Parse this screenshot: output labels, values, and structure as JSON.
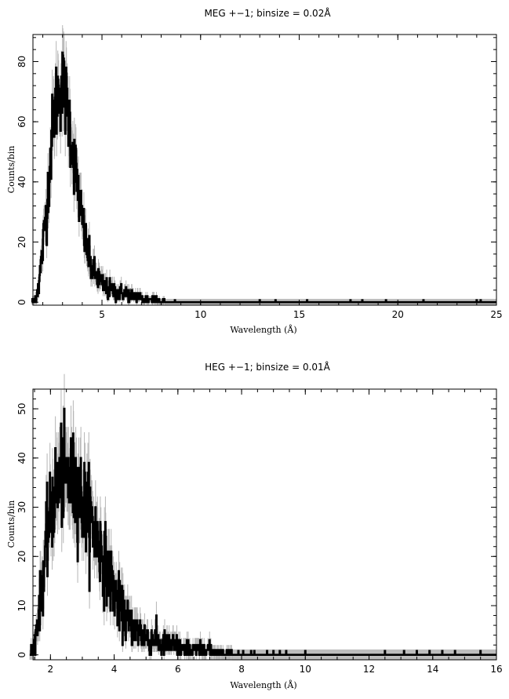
{
  "chart_data": [
    {
      "type": "line",
      "title": "MEG +−1; binsize = 0.02Å",
      "xlabel": "Wavelength (Å)",
      "ylabel": "Counts/bin",
      "xlim": [
        1.5,
        25
      ],
      "ylim": [
        -1,
        89
      ],
      "binsize": 0.02,
      "xticks": [
        5,
        10,
        15,
        20,
        25
      ],
      "yticks": [
        0,
        20,
        40,
        60,
        80
      ],
      "grid": false,
      "series": [
        {
          "x": [
            1.6,
            1.8,
            2.0,
            2.2,
            2.4,
            2.6,
            2.8,
            3.0,
            3.2,
            3.4,
            3.6,
            3.8,
            4.0,
            4.2,
            4.4,
            4.6,
            4.8,
            5.0,
            5.2,
            5.4,
            5.6,
            5.8,
            6.0,
            6.2,
            6.4,
            6.6,
            6.8,
            7.0,
            7.2,
            7.4,
            7.6,
            7.8,
            8.0,
            8.2
          ],
          "values": [
            1,
            6,
            18,
            32,
            50,
            65,
            70,
            72,
            66,
            58,
            47,
            37,
            27,
            19,
            13,
            10,
            8,
            6,
            5,
            4,
            4,
            3,
            3,
            3,
            2,
            2,
            2,
            1,
            1,
            1,
            1,
            1,
            0,
            0
          ]
        }
      ],
      "isolated_counts_x": [
        8.7,
        13.0,
        13.8,
        15.4,
        17.6,
        18.2,
        19.4,
        21.3,
        24.0,
        24.2
      ]
    },
    {
      "type": "line",
      "title": "HEG +−1; binsize = 0.01Å",
      "xlabel": "Wavelength (Å)",
      "ylabel": "Counts/bin",
      "xlim": [
        1.45,
        16
      ],
      "ylim": [
        -1,
        54
      ],
      "binsize": 0.01,
      "xticks": [
        2,
        4,
        6,
        8,
        10,
        12,
        14,
        16
      ],
      "yticks": [
        0,
        10,
        20,
        30,
        40,
        50
      ],
      "grid": false,
      "series": [
        {
          "x": [
            1.5,
            1.7,
            1.9,
            2.1,
            2.3,
            2.5,
            2.7,
            2.9,
            3.1,
            3.3,
            3.5,
            3.7,
            3.9,
            4.1,
            4.3,
            4.5,
            4.7,
            4.9,
            5.1,
            5.3,
            5.5,
            5.7,
            5.9,
            6.1,
            6.3,
            6.5,
            6.7,
            6.9,
            7.1,
            7.3,
            7.5,
            7.7
          ],
          "values": [
            2,
            12,
            24,
            32,
            36,
            36,
            35,
            33,
            30,
            27,
            23,
            19,
            15,
            11,
            8,
            6,
            5,
            4,
            3,
            3,
            2,
            2,
            2,
            1,
            1,
            1,
            1,
            1,
            1,
            0,
            0,
            0
          ]
        }
      ],
      "isolated_counts_x": [
        7.9,
        8.05,
        8.3,
        8.4,
        8.8,
        9.0,
        9.2,
        9.4,
        10.0,
        12.5,
        13.1,
        13.5,
        13.9,
        14.3,
        14.7,
        15.5
      ]
    }
  ]
}
